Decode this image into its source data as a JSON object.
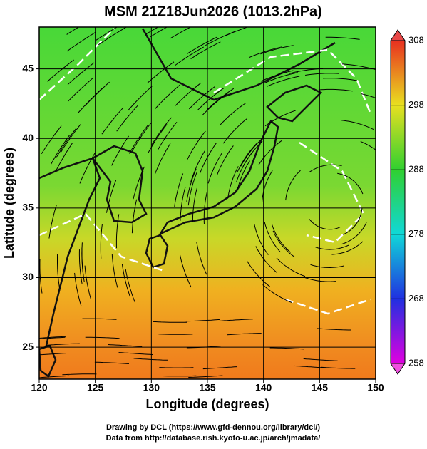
{
  "chart_data": {
    "type": "map",
    "title": "MSM 21Z18Jun2026 (1013.2hPa)",
    "xlabel": "Longitude (degrees)",
    "ylabel": "Latitude  (degrees)",
    "xlim": [
      120,
      150
    ],
    "ylim": [
      22.7,
      48
    ],
    "xticks": [
      120,
      125,
      130,
      135,
      140,
      145,
      150
    ],
    "yticks": [
      25,
      30,
      35,
      40,
      45
    ],
    "grid": true,
    "colorbar": {
      "lim": [
        258,
        308
      ],
      "ticks": [
        258,
        268,
        278,
        288,
        298,
        308
      ]
    },
    "footer": [
      "Drawing by DCL (https://www.gfd-dennou.org/library/dcl/)",
      "Data from http://database.rish.kyoto-u.ac.jp/arch/jmadata/"
    ]
  }
}
